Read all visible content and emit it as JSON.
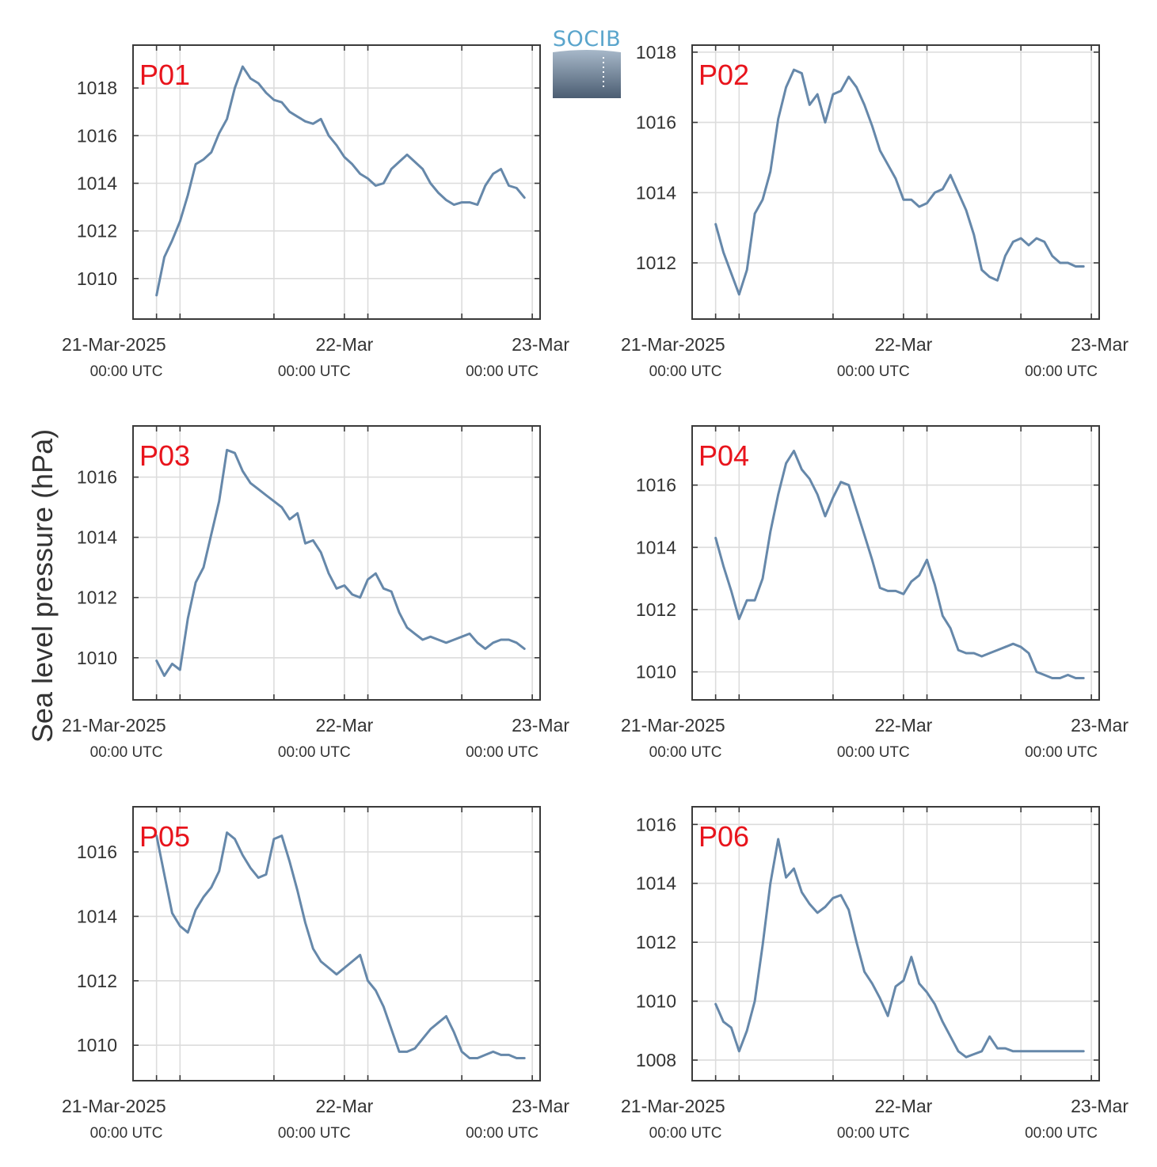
{
  "colors": {
    "line": "#6688aa",
    "panel_label": "#e8141c",
    "grid": "#dcdcdc",
    "frame": "#3a3a3a"
  },
  "logo": {
    "text": "SOCIB"
  },
  "ylabel": "Sea level pressure (hPa)",
  "x_ticks": [
    {
      "main": "21-Mar-2025",
      "sub": "00:00 UTC"
    },
    {
      "main": "22-Mar",
      "sub": "00:00 UTC"
    },
    {
      "main": "23-Mar",
      "sub": "00:00 UTC"
    }
  ],
  "chart_data": [
    {
      "type": "line",
      "title": "P01",
      "x_unit": "hours since 21-Mar-2025 00:00 UTC",
      "ylim": [
        1008.3,
        1019.8
      ],
      "yticks": [
        1010,
        1012,
        1014,
        1016,
        1018
      ],
      "x": [
        0,
        1,
        2,
        3,
        4,
        5,
        6,
        7,
        8,
        9,
        10,
        11,
        12,
        13,
        14,
        15,
        16,
        17,
        18,
        19,
        20,
        21,
        22,
        23,
        24,
        25,
        26,
        27,
        28,
        29,
        30,
        31,
        32,
        33,
        34,
        35,
        36,
        37,
        38,
        39,
        40,
        41,
        42,
        43,
        44,
        45,
        46,
        47
      ],
      "y": [
        1009.3,
        1010.9,
        1011.6,
        1012.4,
        1013.5,
        1014.8,
        1015.0,
        1015.3,
        1016.1,
        1016.7,
        1018.0,
        1018.9,
        1018.4,
        1018.2,
        1017.8,
        1017.5,
        1017.4,
        1017.0,
        1016.8,
        1016.6,
        1016.5,
        1016.7,
        1016.0,
        1015.6,
        1015.1,
        1014.8,
        1014.4,
        1014.2,
        1013.9,
        1014.0,
        1014.6,
        1014.9,
        1015.2,
        1014.9,
        1014.6,
        1014.0,
        1013.6,
        1013.3,
        1013.1,
        1013.2,
        1013.2,
        1013.1,
        1013.9,
        1014.4,
        1014.6,
        1013.9,
        1013.8,
        1013.4
      ]
    },
    {
      "type": "line",
      "title": "P02",
      "x_unit": "hours since 21-Mar-2025 00:00 UTC",
      "ylim": [
        1010.4,
        1018.2
      ],
      "yticks": [
        1012,
        1014,
        1016,
        1018
      ],
      "x": [
        0,
        1,
        2,
        3,
        4,
        5,
        6,
        7,
        8,
        9,
        10,
        11,
        12,
        13,
        14,
        15,
        16,
        17,
        18,
        19,
        20,
        21,
        22,
        23,
        24,
        25,
        26,
        27,
        28,
        29,
        30,
        31,
        32,
        33,
        34,
        35,
        36,
        37,
        38,
        39,
        40,
        41,
        42,
        43,
        44,
        45,
        46,
        47
      ],
      "y": [
        1013.1,
        1012.3,
        1011.7,
        1011.1,
        1011.8,
        1013.4,
        1013.8,
        1014.6,
        1016.1,
        1017.0,
        1017.5,
        1017.4,
        1016.5,
        1016.8,
        1016.0,
        1016.8,
        1016.9,
        1017.3,
        1017.0,
        1016.5,
        1015.9,
        1015.2,
        1014.8,
        1014.4,
        1013.8,
        1013.8,
        1013.6,
        1013.7,
        1014.0,
        1014.1,
        1014.5,
        1014.0,
        1013.5,
        1012.8,
        1011.8,
        1011.6,
        1011.5,
        1012.2,
        1012.6,
        1012.7,
        1012.5,
        1012.7,
        1012.6,
        1012.2,
        1012.0,
        1012.0,
        1011.9,
        1011.9
      ]
    },
    {
      "type": "line",
      "title": "P03",
      "x_unit": "hours since 21-Mar-2025 00:00 UTC",
      "ylim": [
        1008.6,
        1017.7
      ],
      "yticks": [
        1010,
        1012,
        1014,
        1016
      ],
      "x": [
        0,
        1,
        2,
        3,
        4,
        5,
        6,
        7,
        8,
        9,
        10,
        11,
        12,
        13,
        14,
        15,
        16,
        17,
        18,
        19,
        20,
        21,
        22,
        23,
        24,
        25,
        26,
        27,
        28,
        29,
        30,
        31,
        32,
        33,
        34,
        35,
        36,
        37,
        38,
        39,
        40,
        41,
        42,
        43,
        44,
        45,
        46,
        47
      ],
      "y": [
        1009.9,
        1009.4,
        1009.8,
        1009.6,
        1011.3,
        1012.5,
        1013.0,
        1014.1,
        1015.2,
        1016.9,
        1016.8,
        1016.2,
        1015.8,
        1015.6,
        1015.4,
        1015.2,
        1015.0,
        1014.6,
        1014.8,
        1013.8,
        1013.9,
        1013.5,
        1012.8,
        1012.3,
        1012.4,
        1012.1,
        1012.0,
        1012.6,
        1012.8,
        1012.3,
        1012.2,
        1011.5,
        1011.0,
        1010.8,
        1010.6,
        1010.7,
        1010.6,
        1010.5,
        1010.6,
        1010.7,
        1010.8,
        1010.5,
        1010.3,
        1010.5,
        1010.6,
        1010.6,
        1010.5,
        1010.3
      ]
    },
    {
      "type": "line",
      "title": "P04",
      "x_unit": "hours since 21-Mar-2025 00:00 UTC",
      "ylim": [
        1009.1,
        1017.9
      ],
      "yticks": [
        1010,
        1012,
        1014,
        1016
      ],
      "x": [
        0,
        1,
        2,
        3,
        4,
        5,
        6,
        7,
        8,
        9,
        10,
        11,
        12,
        13,
        14,
        15,
        16,
        17,
        18,
        19,
        20,
        21,
        22,
        23,
        24,
        25,
        26,
        27,
        28,
        29,
        30,
        31,
        32,
        33,
        34,
        35,
        36,
        37,
        38,
        39,
        40,
        41,
        42,
        43,
        44,
        45,
        46,
        47
      ],
      "y": [
        1014.3,
        1013.4,
        1012.6,
        1011.7,
        1012.3,
        1012.3,
        1013.0,
        1014.5,
        1015.7,
        1016.7,
        1017.1,
        1016.5,
        1016.2,
        1015.7,
        1015.0,
        1015.6,
        1016.1,
        1016.0,
        1015.2,
        1014.4,
        1013.6,
        1012.7,
        1012.6,
        1012.6,
        1012.5,
        1012.9,
        1013.1,
        1013.6,
        1012.8,
        1011.8,
        1011.4,
        1010.7,
        1010.6,
        1010.6,
        1010.5,
        1010.6,
        1010.7,
        1010.8,
        1010.9,
        1010.8,
        1010.6,
        1010.0,
        1009.9,
        1009.8,
        1009.8,
        1009.9,
        1009.8,
        1009.8
      ]
    },
    {
      "type": "line",
      "title": "P05",
      "x_unit": "hours since 21-Mar-2025 00:00 UTC",
      "ylim": [
        1008.9,
        1017.4
      ],
      "yticks": [
        1010,
        1012,
        1014,
        1016
      ],
      "x": [
        0,
        1,
        2,
        3,
        4,
        5,
        6,
        7,
        8,
        9,
        10,
        11,
        12,
        13,
        14,
        15,
        16,
        17,
        18,
        19,
        20,
        21,
        22,
        23,
        24,
        25,
        26,
        27,
        28,
        29,
        30,
        31,
        32,
        33,
        34,
        35,
        36,
        37,
        38,
        39,
        40,
        41,
        42,
        43,
        44,
        45,
        46,
        47
      ],
      "y": [
        1016.5,
        1015.3,
        1014.1,
        1013.7,
        1013.5,
        1014.2,
        1014.6,
        1014.9,
        1015.4,
        1016.6,
        1016.4,
        1015.9,
        1015.5,
        1015.2,
        1015.3,
        1016.4,
        1016.5,
        1015.7,
        1014.8,
        1013.8,
        1013.0,
        1012.6,
        1012.4,
        1012.2,
        1012.4,
        1012.6,
        1012.8,
        1012.0,
        1011.7,
        1011.2,
        1010.5,
        1009.8,
        1009.8,
        1009.9,
        1010.2,
        1010.5,
        1010.7,
        1010.9,
        1010.4,
        1009.8,
        1009.6,
        1009.6,
        1009.7,
        1009.8,
        1009.7,
        1009.7,
        1009.6,
        1009.6
      ]
    },
    {
      "type": "line",
      "title": "P06",
      "x_unit": "hours since 21-Mar-2025 00:00 UTC",
      "ylim": [
        1007.3,
        1016.6
      ],
      "yticks": [
        1008,
        1010,
        1012,
        1014,
        1016
      ],
      "x": [
        0,
        1,
        2,
        3,
        4,
        5,
        6,
        7,
        8,
        9,
        10,
        11,
        12,
        13,
        14,
        15,
        16,
        17,
        18,
        19,
        20,
        21,
        22,
        23,
        24,
        25,
        26,
        27,
        28,
        29,
        30,
        31,
        32,
        33,
        34,
        35,
        36,
        37,
        38,
        39,
        40,
        41,
        42,
        43,
        44,
        45,
        46,
        47
      ],
      "y": [
        1009.9,
        1009.3,
        1009.1,
        1008.3,
        1009.0,
        1010.0,
        1011.9,
        1014.0,
        1015.5,
        1014.2,
        1014.5,
        1013.7,
        1013.3,
        1013.0,
        1013.2,
        1013.5,
        1013.6,
        1013.1,
        1012.0,
        1011.0,
        1010.6,
        1010.1,
        1009.5,
        1010.5,
        1010.7,
        1011.5,
        1010.6,
        1010.3,
        1009.9,
        1009.3,
        1008.8,
        1008.3,
        1008.1,
        1008.2,
        1008.3,
        1008.8,
        1008.4,
        1008.4,
        1008.3,
        1008.3,
        1008.3,
        1008.3,
        1008.3,
        1008.3,
        1008.3,
        1008.3,
        1008.3,
        1008.3
      ]
    }
  ]
}
